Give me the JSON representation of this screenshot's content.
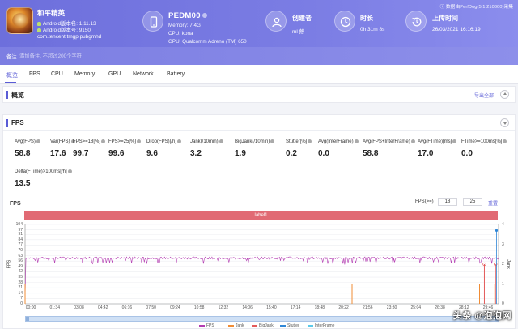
{
  "header": {
    "app_name": "和平精英",
    "android_version": "Android版本名: 1.11.13",
    "android_code": "Android版本号: 9150",
    "package": "com.tencent.tmgp.pubgmhd",
    "device_name": "PEDM00",
    "memory": "Memory: 7.4G",
    "cpu": "CPU: kona",
    "gpu": "GPU: Qualcomm Adreno (TM) 650",
    "creator_label": "创建者",
    "creator_value": "ml 熱",
    "duration_label": "时长",
    "duration_value": "0h 31m 8s",
    "upload_label": "上传时间",
    "upload_value": "26/03/2021 16:16:19",
    "version": "数据由PerfDog(5.1.210300)采集"
  },
  "notes": {
    "label": "备注",
    "placeholder": "添加备注, 不超过200个字符"
  },
  "tabs": [
    {
      "label": "概览"
    },
    {
      "label": "FPS"
    },
    {
      "label": "CPU"
    },
    {
      "label": "Memory"
    },
    {
      "label": "GPU"
    },
    {
      "label": "Network"
    },
    {
      "label": "Battery"
    }
  ],
  "overview": {
    "title": "概览",
    "export": "导出全部"
  },
  "fps": {
    "title": "FPS",
    "metrics": [
      {
        "label": "Avg(FPS)",
        "value": "58.8"
      },
      {
        "label": "Var(FPS)",
        "value": "17.6"
      },
      {
        "label": "FPS>=18[%]",
        "value": "99.7"
      },
      {
        "label": "FPS>=25[%]",
        "value": "99.6"
      },
      {
        "label": "Drop(FPS)[/h]",
        "value": "9.6"
      },
      {
        "label": "Jank(/10min)",
        "value": "3.2"
      },
      {
        "label": "BigJank(/10min)",
        "value": "1.9"
      },
      {
        "label": "Stutter[%]",
        "value": "0.2"
      },
      {
        "label": "Avg(InterFrame)",
        "value": "0.0"
      },
      {
        "label": "Avg(FPS+InterFrame)",
        "value": "58.8"
      },
      {
        "label": "Avg(FTime)[ms]",
        "value": "17.0"
      },
      {
        "label": "FTime>=100ms[%]",
        "value": "0.0"
      },
      {
        "label": "Delta(FTime)>100ms[/h]",
        "value": "13.5"
      }
    ],
    "chart_title": "FPS",
    "range_label": "FPS(>=)",
    "range_min": "18",
    "range_max": "25",
    "reset": "重置",
    "band_label": "label1"
  },
  "chart_data": {
    "type": "line",
    "title": "FPS",
    "xlabel": "",
    "ylabel": "FPS",
    "y2label": "Jank",
    "ylim": [
      0,
      104
    ],
    "y2lim": [
      0,
      4
    ],
    "yticks": [
      0,
      7,
      14,
      21,
      28,
      35,
      42,
      49,
      56,
      63,
      70,
      77,
      84,
      91,
      97,
      104
    ],
    "y2ticks": [
      0,
      1,
      2,
      3,
      4
    ],
    "xticks": [
      "00:00",
      "01:34",
      "03:08",
      "04:42",
      "06:16",
      "07:50",
      "09:24",
      "10:58",
      "12:32",
      "14:06",
      "15:40",
      "17:14",
      "18:48",
      "20:22",
      "21:56",
      "23:30",
      "25:04",
      "26:38",
      "28:12",
      "29:46"
    ],
    "series": [
      {
        "name": "FPS",
        "color": "#b33bb1",
        "typical": 60,
        "x_end_sec": 1868
      },
      {
        "name": "Jank",
        "color": "#f08c35",
        "events_sec": [
          0,
          1290,
          1793,
          1853
        ],
        "values": [
          1,
          1,
          1,
          1
        ]
      },
      {
        "name": "BigJank",
        "color": "#e35a5a",
        "events_sec": [
          1812,
          1856
        ],
        "values": [
          1,
          1
        ]
      },
      {
        "name": "Stutter",
        "color": "#2f86d6"
      },
      {
        "name": "InterFrame",
        "color": "#5cc9e8"
      }
    ],
    "grid": true
  },
  "watermark": "头条 @泡泡网"
}
